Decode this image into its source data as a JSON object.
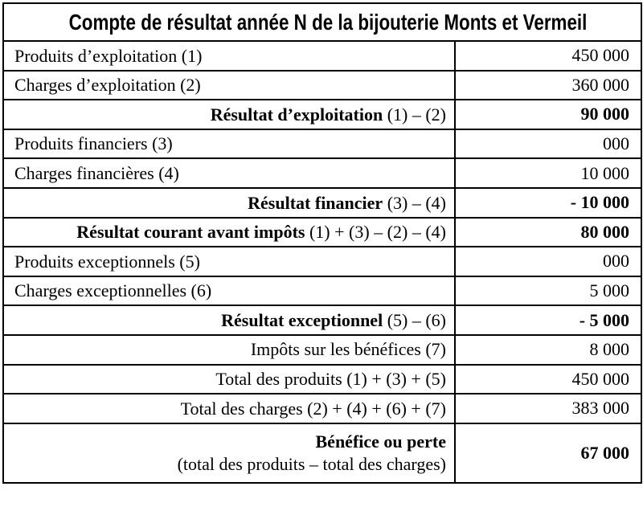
{
  "title": "Compte de résultat année N de la bijouterie Monts et Vermeil",
  "colors": {
    "border": "#000000",
    "text": "#000000",
    "background": "#ffffff"
  },
  "table": {
    "rows": [
      {
        "name": "produits-exploitation",
        "align": "left",
        "label": "Produits d’exploitation (1)",
        "value": "450 000",
        "value_bold": false
      },
      {
        "name": "charges-exploitation",
        "align": "left",
        "label": "Charges d’exploitation (2)",
        "value": "360 000",
        "value_bold": false
      },
      {
        "name": "resultat-exploitation",
        "align": "right",
        "label_bold": "Résultat d’exploitation",
        "label_rest": " (1) – (2)",
        "value": "90 000",
        "value_bold": true
      },
      {
        "name": "produits-financiers",
        "align": "left",
        "label": "Produits financiers (3)",
        "value": "000",
        "value_bold": false
      },
      {
        "name": "charges-financieres",
        "align": "left",
        "label": "Charges financières (4)",
        "value": "10 000",
        "value_bold": false
      },
      {
        "name": "resultat-financier",
        "align": "right",
        "label_bold": "Résultat financier",
        "label_rest": " (3) – (4)",
        "value": "- 10 000",
        "value_bold": true
      },
      {
        "name": "resultat-courant-avant-impots",
        "align": "right",
        "label_bold": "Résultat courant avant impôts",
        "label_rest": " (1) + (3) – (2) – (4)",
        "value": "80 000",
        "value_bold": true
      },
      {
        "name": "produits-exceptionnels",
        "align": "left",
        "label": "Produits exceptionnels (5)",
        "value": "000",
        "value_bold": false
      },
      {
        "name": "charges-exceptionnelles",
        "align": "left",
        "label": "Charges exceptionnelles (6)",
        "value": "5 000",
        "value_bold": false
      },
      {
        "name": "resultat-exceptionnel",
        "align": "right",
        "label_bold": "Résultat exceptionnel",
        "label_rest": " (5) – (6)",
        "value": "- 5 000",
        "value_bold": true
      },
      {
        "name": "impots-sur-les-benefices",
        "align": "right",
        "label": "Impôts sur les bénéfices (7)",
        "value": "8 000",
        "value_bold": false
      },
      {
        "name": "total-des-produits",
        "align": "right",
        "label": "Total des produits (1) + (3) + (5)",
        "value": "450 000",
        "value_bold": false
      },
      {
        "name": "total-des-charges",
        "align": "right",
        "label": "Total des charges (2) + (4) + (6) + (7)",
        "value": "383 000",
        "value_bold": false
      },
      {
        "name": "benefice-ou-perte",
        "align": "right",
        "label_bold": "Bénéfice ou perte",
        "label_line2": "(total des produits – total des charges)",
        "value": "67 000",
        "value_bold": true,
        "tall": true
      }
    ]
  }
}
